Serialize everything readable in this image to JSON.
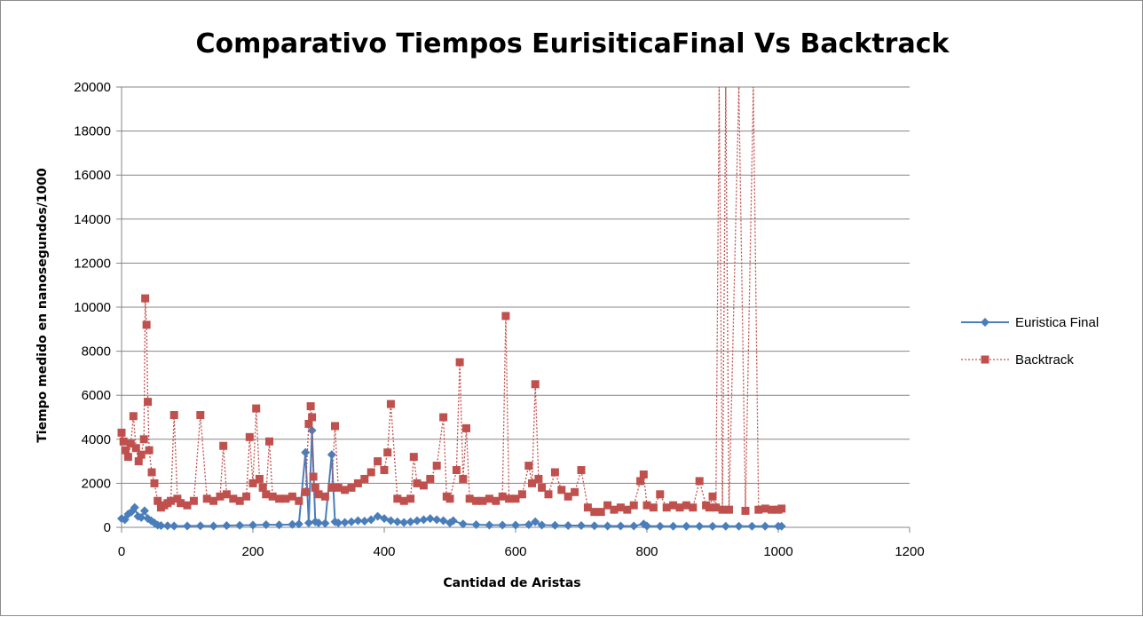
{
  "chart_data": {
    "type": "line",
    "title": "Comparativo Tiempos EurisiticaFinal Vs Backtrack",
    "xlabel": "Cantidad de Aristas",
    "ylabel": "Tiempo medido en nanosegundos/1000",
    "xlim": [
      0,
      1200
    ],
    "ylim": [
      0,
      20000
    ],
    "xticks": [
      "0",
      "200",
      "400",
      "600",
      "800",
      "1000",
      "1200"
    ],
    "yticks": [
      "0",
      "2000",
      "4000",
      "6000",
      "8000",
      "10000",
      "12000",
      "14000",
      "16000",
      "18000",
      "20000"
    ],
    "grid": "horizontal",
    "legend_position": "right",
    "series": [
      {
        "name": "Euristica Final",
        "color": "#4a7ebb",
        "marker": "diamond",
        "line": "solid",
        "x": [
          0,
          5,
          10,
          15,
          20,
          25,
          30,
          35,
          40,
          45,
          50,
          55,
          60,
          70,
          80,
          100,
          120,
          140,
          160,
          180,
          200,
          220,
          240,
          260,
          270,
          280,
          285,
          290,
          295,
          300,
          310,
          320,
          325,
          330,
          340,
          350,
          360,
          370,
          380,
          390,
          400,
          410,
          420,
          430,
          440,
          450,
          460,
          470,
          480,
          490,
          500,
          505,
          520,
          540,
          560,
          580,
          600,
          620,
          630,
          640,
          660,
          680,
          700,
          720,
          740,
          760,
          780,
          795,
          800,
          820,
          840,
          860,
          880,
          900,
          920,
          940,
          960,
          980,
          1000,
          1005
        ],
        "y": [
          400,
          350,
          600,
          700,
          900,
          500,
          450,
          750,
          400,
          300,
          200,
          100,
          80,
          70,
          60,
          60,
          70,
          60,
          80,
          90,
          100,
          120,
          110,
          130,
          150,
          3400,
          200,
          4400,
          250,
          200,
          180,
          3300,
          250,
          200,
          220,
          250,
          300,
          280,
          350,
          500,
          400,
          300,
          250,
          220,
          250,
          300,
          350,
          400,
          350,
          300,
          200,
          300,
          150,
          120,
          100,
          100,
          100,
          120,
          250,
          100,
          90,
          80,
          80,
          70,
          60,
          60,
          60,
          150,
          60,
          50,
          50,
          50,
          50,
          50,
          50,
          50,
          50,
          50,
          50,
          50
        ]
      },
      {
        "name": "Backtrack",
        "color": "#c0504d",
        "marker": "square",
        "line": "dotted",
        "x": [
          0,
          3,
          6,
          10,
          14,
          18,
          22,
          26,
          30,
          34,
          36,
          38,
          40,
          42,
          46,
          50,
          55,
          60,
          65,
          70,
          75,
          80,
          85,
          90,
          100,
          110,
          120,
          130,
          140,
          150,
          155,
          160,
          170,
          180,
          190,
          195,
          200,
          205,
          210,
          215,
          220,
          225,
          230,
          240,
          250,
          260,
          270,
          280,
          285,
          288,
          290,
          292,
          295,
          300,
          310,
          320,
          325,
          330,
          340,
          350,
          360,
          370,
          380,
          390,
          400,
          405,
          410,
          420,
          430,
          440,
          445,
          450,
          460,
          470,
          480,
          490,
          495,
          500,
          510,
          515,
          520,
          525,
          530,
          540,
          550,
          560,
          570,
          580,
          585,
          590,
          600,
          610,
          620,
          625,
          630,
          635,
          640,
          650,
          660,
          670,
          680,
          690,
          700,
          710,
          720,
          730,
          740,
          750,
          760,
          770,
          780,
          790,
          795,
          800,
          810,
          820,
          830,
          840,
          850,
          860,
          870,
          880,
          890,
          895,
          900,
          905,
          910,
          915,
          920,
          925,
          940,
          950,
          962,
          970,
          980,
          990,
          1000,
          1005
        ],
        "y": [
          4300,
          3900,
          3500,
          3200,
          3800,
          5050,
          3600,
          3000,
          3300,
          4000,
          10400,
          9200,
          5700,
          3500,
          2500,
          2000,
          1200,
          900,
          1000,
          1100,
          1200,
          5100,
          1300,
          1100,
          1000,
          1200,
          5100,
          1300,
          1200,
          1400,
          3700,
          1500,
          1300,
          1200,
          1400,
          4100,
          2000,
          5400,
          2200,
          1800,
          1500,
          3900,
          1400,
          1300,
          1300,
          1400,
          1200,
          1600,
          4700,
          5500,
          5000,
          2300,
          1800,
          1500,
          1400,
          1800,
          4600,
          1800,
          1700,
          1800,
          2000,
          2200,
          2500,
          3000,
          2600,
          3400,
          5600,
          1300,
          1200,
          1300,
          3200,
          2000,
          1900,
          2200,
          2800,
          5000,
          1400,
          1300,
          2600,
          7500,
          2200,
          4500,
          1300,
          1200,
          1200,
          1300,
          1200,
          1400,
          9600,
          1300,
          1300,
          1500,
          2800,
          2000,
          6500,
          2200,
          1800,
          1500,
          2500,
          1700,
          1400,
          1600,
          2600,
          900,
          700,
          700,
          1000,
          800,
          900,
          800,
          1000,
          2100,
          2400,
          1000,
          900,
          1500,
          900,
          1000,
          900,
          1000,
          900,
          2100,
          1000,
          900,
          1400,
          900,
          20000,
          800,
          20000,
          800,
          20000,
          750,
          20000,
          800,
          850,
          800,
          800,
          850
        ]
      }
    ]
  }
}
